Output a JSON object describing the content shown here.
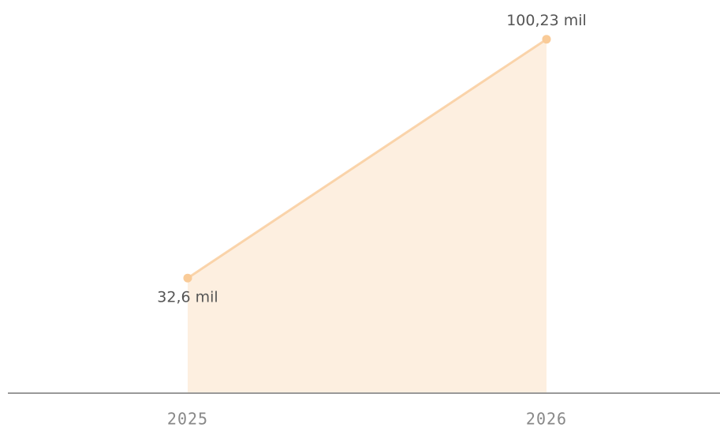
{
  "chart_data": {
    "type": "area",
    "categories": [
      "2025",
      "2026"
    ],
    "values": [
      32.6,
      100.23
    ],
    "value_labels": [
      "32,6 mil",
      "100,23 mil"
    ],
    "color": "#f9cb98",
    "ylim": [
      0,
      110
    ]
  }
}
